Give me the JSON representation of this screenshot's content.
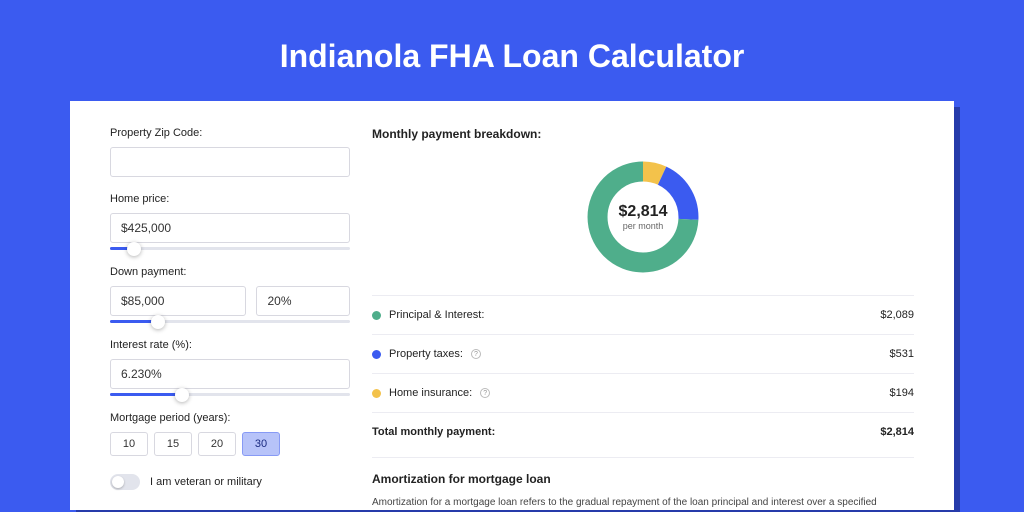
{
  "page": {
    "title": "Indianola FHA Loan Calculator"
  },
  "colors": {
    "page_bg": "#3b5bf0",
    "card_bg": "#ffffff",
    "shadow": "rgba(0,0,40,0.35)",
    "slider_fill": "#3b5bf0",
    "series": {
      "pi": "#4fae8b",
      "taxes": "#3b5bf0",
      "insurance": "#f3c24b"
    }
  },
  "form": {
    "zip": {
      "label": "Property Zip Code:",
      "value": ""
    },
    "home_price": {
      "label": "Home price:",
      "value": "$425,000",
      "slider_pct": 10
    },
    "down_payment": {
      "label": "Down payment:",
      "amount": "$85,000",
      "pct": "20%",
      "slider_pct": 20
    },
    "interest_rate": {
      "label": "Interest rate (%):",
      "value": "6.230%",
      "slider_pct": 30
    },
    "mortgage_period": {
      "label": "Mortgage period (years):",
      "options": [
        "10",
        "15",
        "20",
        "30"
      ],
      "selected_index": 3
    },
    "veteran": {
      "label": "I am veteran or military",
      "checked": false
    }
  },
  "breakdown": {
    "title": "Monthly payment breakdown:",
    "center_amount": "$2,814",
    "center_sub": "per month",
    "donut": {
      "pi_pct": 74.2,
      "taxes_pct": 18.9,
      "insurance_pct": 6.9
    },
    "rows": [
      {
        "key": "pi",
        "label": "Principal & Interest:",
        "value": "$2,089",
        "info": false
      },
      {
        "key": "taxes",
        "label": "Property taxes:",
        "value": "$531",
        "info": true
      },
      {
        "key": "insurance",
        "label": "Home insurance:",
        "value": "$194",
        "info": true
      }
    ],
    "total_label": "Total monthly payment:",
    "total_value": "$2,814"
  },
  "amortization": {
    "title": "Amortization for mortgage loan",
    "text": "Amortization for a mortgage loan refers to the gradual repayment of the loan principal and interest over a specified"
  }
}
